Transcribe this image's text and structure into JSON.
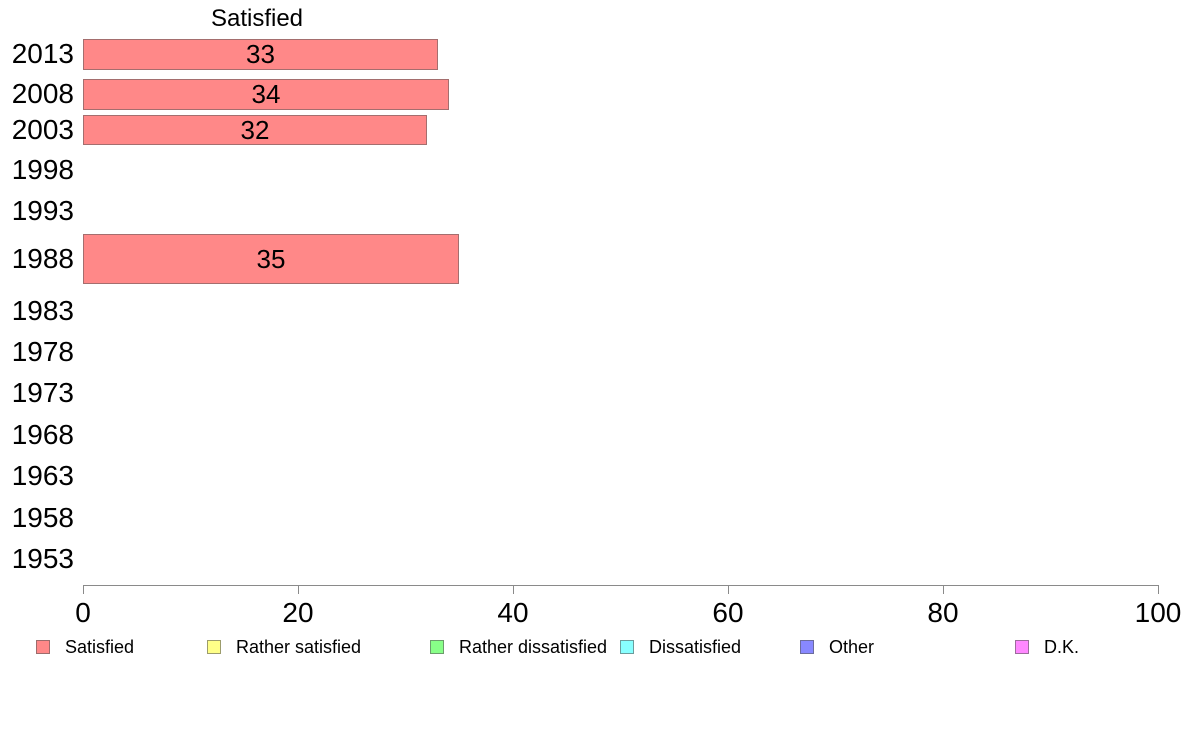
{
  "chart_data": {
    "type": "bar",
    "orientation": "horizontal",
    "title": "Satisfied",
    "categories": [
      "2013",
      "2008",
      "2003",
      "1998",
      "1993",
      "1988",
      "1983",
      "1978",
      "1973",
      "1968",
      "1963",
      "1958",
      "1953"
    ],
    "series": [
      {
        "name": "Satisfied",
        "color": "#FF8888",
        "values": [
          33,
          34,
          32,
          null,
          null,
          35,
          null,
          null,
          null,
          null,
          null,
          null,
          null
        ]
      }
    ],
    "xlim": [
      0,
      100
    ],
    "xticks": [
      0,
      20,
      40,
      60,
      80,
      100
    ],
    "grid": false,
    "bar_labels_shown": true,
    "legend": {
      "position": "bottom",
      "entries": [
        {
          "label": "Satisfied",
          "color": "#FF8888"
        },
        {
          "label": "Rather satisfied",
          "color": "#FFFF88"
        },
        {
          "label": "Rather dissatisfied",
          "color": "#88FF88"
        },
        {
          "label": "Dissatisfied",
          "color": "#88FFFF"
        },
        {
          "label": "Other",
          "color": "#8888FF"
        },
        {
          "label": "D.K.",
          "color": "#FF88FF"
        }
      ]
    },
    "colors": {
      "axis": "#8a8a8a",
      "text": "#000000",
      "background": "#ffffff"
    }
  }
}
